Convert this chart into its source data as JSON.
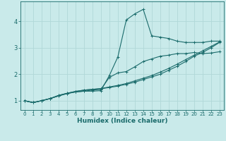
{
  "xlabel": "Humidex (Indice chaleur)",
  "bg_color": "#c9eaea",
  "grid_color": "#b0d8d8",
  "line_color": "#1a6b6b",
  "marker_color": "#1a6b6b",
  "xlim": [
    -0.5,
    23.5
  ],
  "ylim": [
    0.65,
    4.75
  ],
  "xticks": [
    0,
    1,
    2,
    3,
    4,
    5,
    6,
    7,
    8,
    9,
    10,
    11,
    12,
    13,
    14,
    15,
    16,
    17,
    18,
    19,
    20,
    21,
    22,
    23
  ],
  "yticks": [
    1,
    2,
    3,
    4
  ],
  "lines": [
    {
      "x": [
        0,
        1,
        2,
        3,
        4,
        5,
        6,
        7,
        8,
        9,
        10,
        11,
        12,
        13,
        14,
        15,
        16,
        17,
        18,
        19,
        20,
        21,
        22,
        23
      ],
      "y": [
        1.0,
        0.93,
        1.0,
        1.08,
        1.18,
        1.27,
        1.33,
        1.36,
        1.36,
        1.38,
        1.95,
        2.65,
        4.05,
        4.28,
        4.45,
        3.45,
        3.4,
        3.35,
        3.25,
        3.2,
        3.2,
        3.2,
        3.25,
        3.25
      ]
    },
    {
      "x": [
        0,
        1,
        2,
        3,
        4,
        5,
        6,
        7,
        8,
        9,
        10,
        11,
        12,
        13,
        14,
        15,
        16,
        17,
        18,
        19,
        20,
        21,
        22,
        23
      ],
      "y": [
        1.0,
        0.93,
        1.0,
        1.08,
        1.18,
        1.27,
        1.33,
        1.36,
        1.4,
        1.43,
        1.88,
        2.05,
        2.1,
        2.28,
        2.48,
        2.58,
        2.68,
        2.72,
        2.78,
        2.78,
        2.82,
        2.78,
        2.8,
        2.85
      ]
    },
    {
      "x": [
        0,
        1,
        2,
        3,
        4,
        5,
        6,
        7,
        8,
        9,
        10,
        11,
        12,
        13,
        14,
        15,
        16,
        17,
        18,
        19,
        20,
        21,
        22,
        23
      ],
      "y": [
        1.0,
        0.93,
        1.0,
        1.08,
        1.2,
        1.28,
        1.35,
        1.4,
        1.43,
        1.45,
        1.5,
        1.55,
        1.62,
        1.7,
        1.8,
        1.9,
        2.0,
        2.15,
        2.3,
        2.48,
        2.68,
        2.82,
        3.0,
        3.2
      ]
    },
    {
      "x": [
        0,
        1,
        2,
        3,
        4,
        5,
        6,
        7,
        8,
        9,
        10,
        11,
        12,
        13,
        14,
        15,
        16,
        17,
        18,
        19,
        20,
        21,
        22,
        23
      ],
      "y": [
        1.0,
        0.93,
        1.0,
        1.08,
        1.2,
        1.28,
        1.35,
        1.4,
        1.43,
        1.46,
        1.52,
        1.58,
        1.65,
        1.75,
        1.85,
        1.95,
        2.08,
        2.22,
        2.38,
        2.55,
        2.72,
        2.88,
        3.05,
        3.22
      ]
    }
  ]
}
